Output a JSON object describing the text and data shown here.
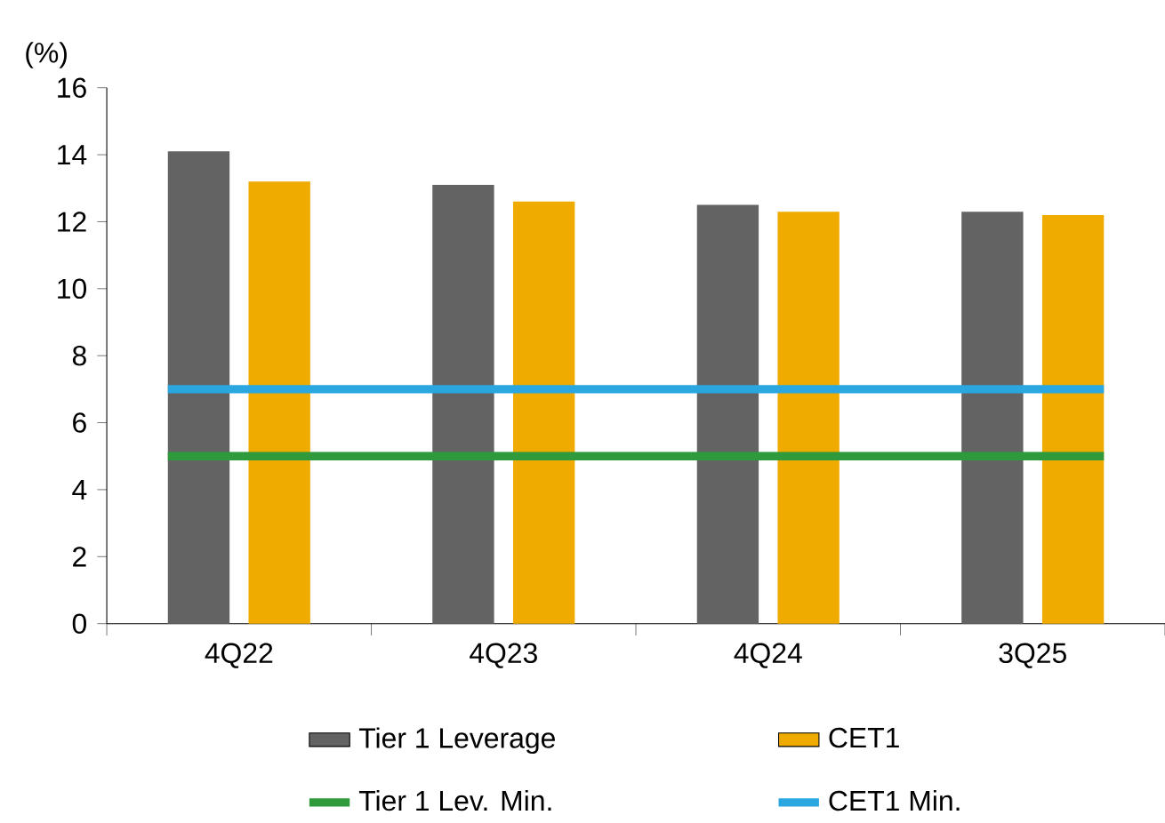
{
  "chart_data": {
    "type": "bar",
    "ylabel": "(%)",
    "categories": [
      "4Q22",
      "4Q23",
      "4Q24",
      "3Q25"
    ],
    "series": [
      {
        "name": "Tier 1 Leverage",
        "color": "#636363",
        "values": [
          14.1,
          13.1,
          12.5,
          12.3
        ]
      },
      {
        "name": "CET1",
        "color": "#f0ab00",
        "values": [
          13.2,
          12.6,
          12.3,
          12.2
        ]
      }
    ],
    "ref_lines": [
      {
        "axis": "y",
        "value": 5,
        "label": "Tier 1 Lev. Min.",
        "color": "#2f9a3c",
        "line_style": "solid"
      },
      {
        "axis": "y",
        "value": 7,
        "label": "CET1 Min.",
        "color": "#2aa7e1",
        "line_style": "solid"
      }
    ],
    "ylim": [
      0,
      16
    ],
    "yticks": [
      0,
      2,
      4,
      6,
      8,
      10,
      12,
      14,
      16
    ],
    "grid": false,
    "legend": "bottom"
  }
}
